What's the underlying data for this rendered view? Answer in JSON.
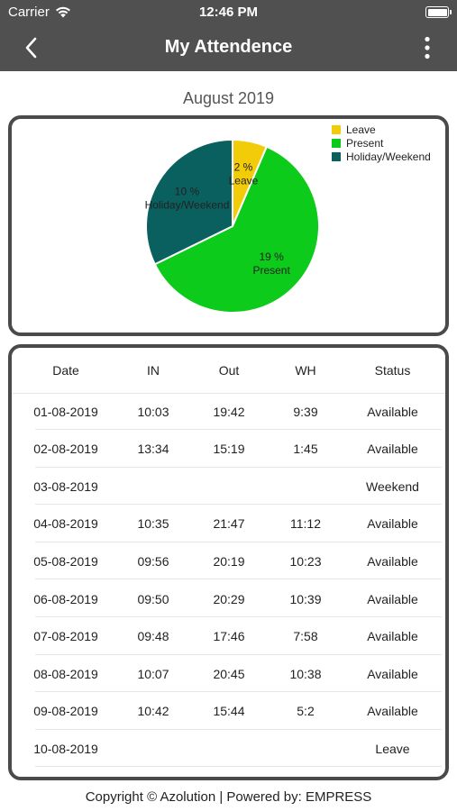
{
  "status_bar": {
    "carrier": "Carrier",
    "time": "12:46 PM"
  },
  "nav": {
    "title": "My Attendence"
  },
  "month_label": "August 2019",
  "colors": {
    "leave": "#f3cc09",
    "present": "#0ccb1a",
    "holiday": "#0a5f5f",
    "bar": "#505050",
    "border": "#4a4a4a"
  },
  "chart_data": {
    "type": "pie",
    "title": "",
    "slices": [
      {
        "name": "Leave",
        "percent_label": "2 %",
        "value": 2,
        "color": "#f3cc09"
      },
      {
        "name": "Present",
        "percent_label": "19 %",
        "value": 19,
        "color": "#0ccb1a"
      },
      {
        "name": "Holiday/Weekend",
        "percent_label": "10 %",
        "value": 10,
        "color": "#0a5f5f"
      }
    ],
    "legend": [
      "Leave",
      "Present",
      "Holiday/Weekend"
    ],
    "legend_placement": "top-right"
  },
  "table": {
    "headers": {
      "date": "Date",
      "in": "IN",
      "out": "Out",
      "wh": "WH",
      "status": "Status"
    },
    "rows": [
      {
        "date": "01-08-2019",
        "in": "10:03",
        "out": "19:42",
        "wh": "9:39",
        "status": "Available"
      },
      {
        "date": "02-08-2019",
        "in": "13:34",
        "out": "15:19",
        "wh": "1:45",
        "status": "Available"
      },
      {
        "date": "03-08-2019",
        "in": "",
        "out": "",
        "wh": "",
        "status": "Weekend"
      },
      {
        "date": "04-08-2019",
        "in": "10:35",
        "out": "21:47",
        "wh": "11:12",
        "status": "Available"
      },
      {
        "date": "05-08-2019",
        "in": "09:56",
        "out": "20:19",
        "wh": "10:23",
        "status": "Available"
      },
      {
        "date": "06-08-2019",
        "in": "09:50",
        "out": "20:29",
        "wh": "10:39",
        "status": "Available"
      },
      {
        "date": "07-08-2019",
        "in": "09:48",
        "out": "17:46",
        "wh": "7:58",
        "status": "Available"
      },
      {
        "date": "08-08-2019",
        "in": "10:07",
        "out": "20:45",
        "wh": "10:38",
        "status": "Available"
      },
      {
        "date": "09-08-2019",
        "in": "10:42",
        "out": "15:44",
        "wh": "5:2",
        "status": "Available"
      },
      {
        "date": "10-08-2019",
        "in": "",
        "out": "",
        "wh": "",
        "status": "Leave"
      }
    ]
  },
  "footer": "Copyright © Azolution | Powered by: EMPRESS"
}
